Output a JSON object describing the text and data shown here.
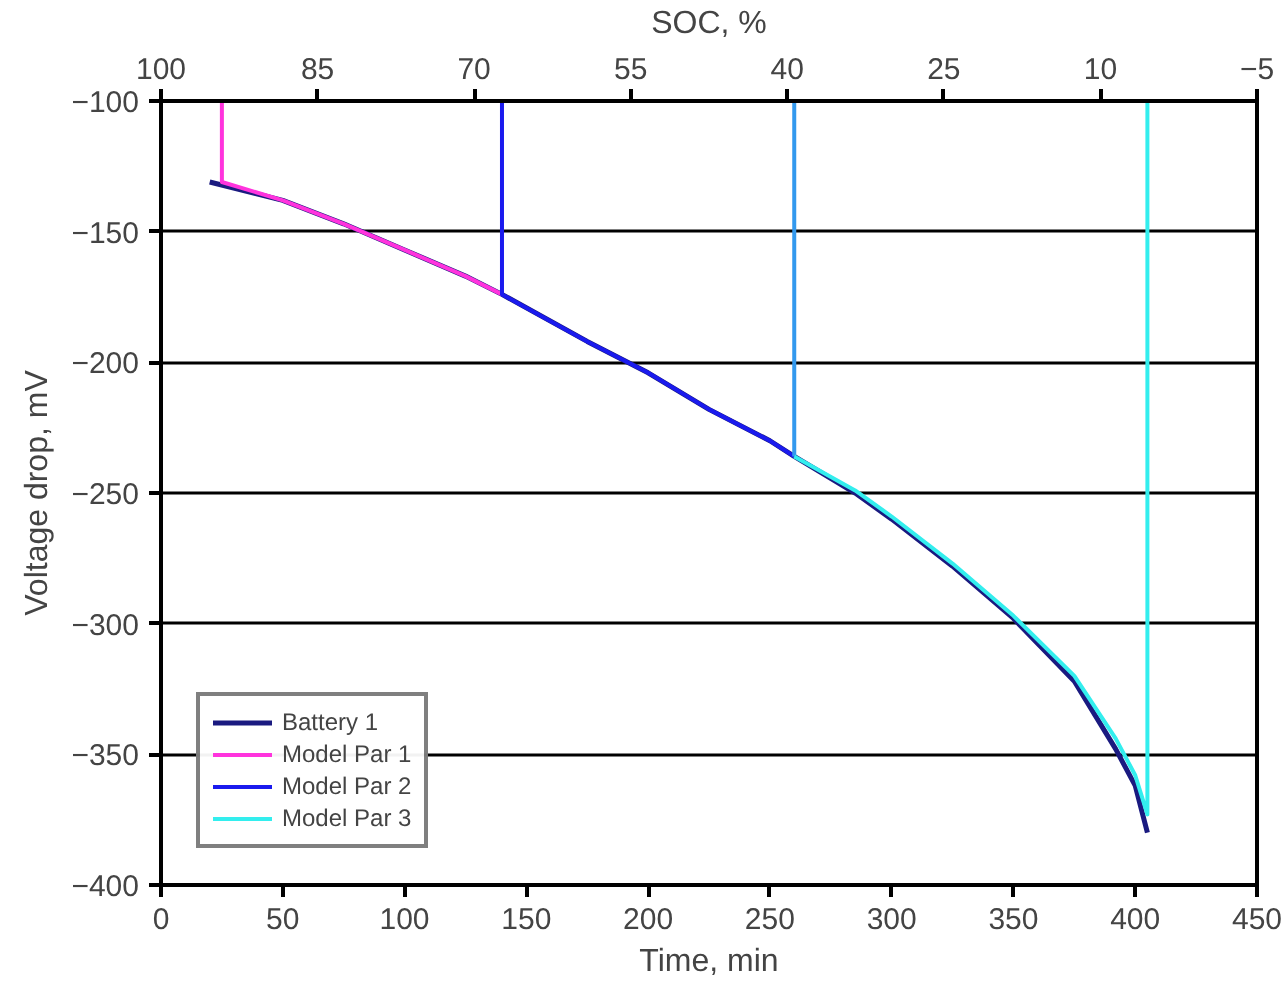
{
  "chart_data": {
    "type": "line",
    "xlabel": "Time, min",
    "ylabel": "Voltage drop, mV",
    "x2label": "SOC, %",
    "xlim": [
      0,
      450
    ],
    "xticks": [
      0,
      50,
      100,
      150,
      200,
      250,
      300,
      350,
      400,
      450
    ],
    "ylim": [
      -400,
      -100
    ],
    "yticks": [
      -400,
      -350,
      -300,
      -250,
      -200,
      -150,
      -100
    ],
    "x2lim": [
      100,
      -5
    ],
    "x2ticks": [
      100,
      85,
      70,
      55,
      40,
      25,
      10,
      -5
    ],
    "grid": "y",
    "legend": "bottom left",
    "series": [
      {
        "name": "Battery 1",
        "color": "#1a1a80",
        "x": [
          20,
          50,
          75,
          100,
          125,
          140,
          175,
          200,
          225,
          250,
          260,
          285,
          300,
          325,
          350,
          375,
          392,
          400,
          405
        ],
        "values": [
          -131,
          -138,
          -147,
          -157,
          -167,
          -174,
          -192,
          -204,
          -218,
          -230,
          -236,
          -250,
          -260,
          -278,
          -298,
          -322,
          -348,
          -362,
          -380
        ]
      },
      {
        "name": "Model Par 1",
        "color": "#ff33dd",
        "x": [
          25,
          25,
          50,
          75,
          100,
          125,
          140
        ],
        "values": [
          -100,
          -131,
          -138,
          -147,
          -157,
          -167,
          -174
        ]
      },
      {
        "name": "Model Par 2",
        "color": "#1a1aee",
        "x": [
          140,
          140,
          175,
          200,
          225,
          250,
          260
        ],
        "values": [
          -100,
          -174,
          -192,
          -204,
          -218,
          -230,
          -236
        ]
      },
      {
        "color": "#3399ee",
        "x": [
          260,
          260
        ],
        "values": [
          -100,
          -236
        ]
      },
      {
        "name": "Model Par 3",
        "color": "#33eeee",
        "x": [
          260,
          285,
          300,
          325,
          350,
          375,
          392,
          400,
          405,
          405
        ],
        "values": [
          -236,
          -249,
          -259,
          -277,
          -297,
          -320,
          -344,
          -358,
          -373,
          -100
        ]
      }
    ]
  }
}
